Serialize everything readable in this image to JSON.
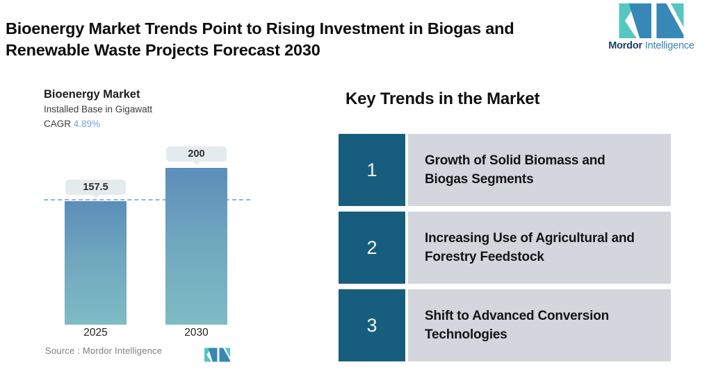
{
  "header": {
    "title": "Bioenergy Market Trends Point to Rising Investment in Biogas and\nRenewable Waste Projects Forecast 2030"
  },
  "brand": {
    "name_bold": "Mordor",
    "name_light": "Intelligence",
    "colors": {
      "teal": "#56c6c0",
      "blue": "#3787b7",
      "navy": "#1c3e5f"
    }
  },
  "chart": {
    "title": "Bioenergy Market",
    "subtitle": "Installed Base in Gigawatt",
    "cagr_label": "CAGR",
    "cagr_value": "4.89%",
    "source": "Source :  Mordor Intelligence"
  },
  "chart_data": {
    "type": "bar",
    "title": "Bioenergy Market",
    "subtitle": "Installed Base in Gigawatt",
    "unit": "Gigawatt",
    "cagr": "4.89%",
    "categories": [
      "2025",
      "2030"
    ],
    "values": [
      157.5,
      200
    ],
    "bar_labels": [
      "157.5",
      "200"
    ],
    "reference_line": 157.5,
    "grid": false,
    "legend": false,
    "bar_color_top": "#5b8eb9",
    "bar_color_bottom": "#7ebcc4",
    "source": "Mordor Intelligence"
  },
  "trends": {
    "heading": "Key Trends in the Market",
    "items": [
      {
        "number": "1",
        "text": "Growth of Solid Biomass and\nBiogas Segments"
      },
      {
        "number": "2",
        "text": "Increasing Use of Agricultural and\nForestry Feedstock"
      },
      {
        "number": "3",
        "text": "Shift to Advanced Conversion\nTechnologies"
      }
    ]
  },
  "status_colors": {
    "trend_number_bg": "#175e7e",
    "trend_row_bg": "#d3d6dc",
    "reference_line": "#93b4d0",
    "label_pill_bg": "#e4ebef",
    "cagr_accent": "#76a2d0"
  }
}
